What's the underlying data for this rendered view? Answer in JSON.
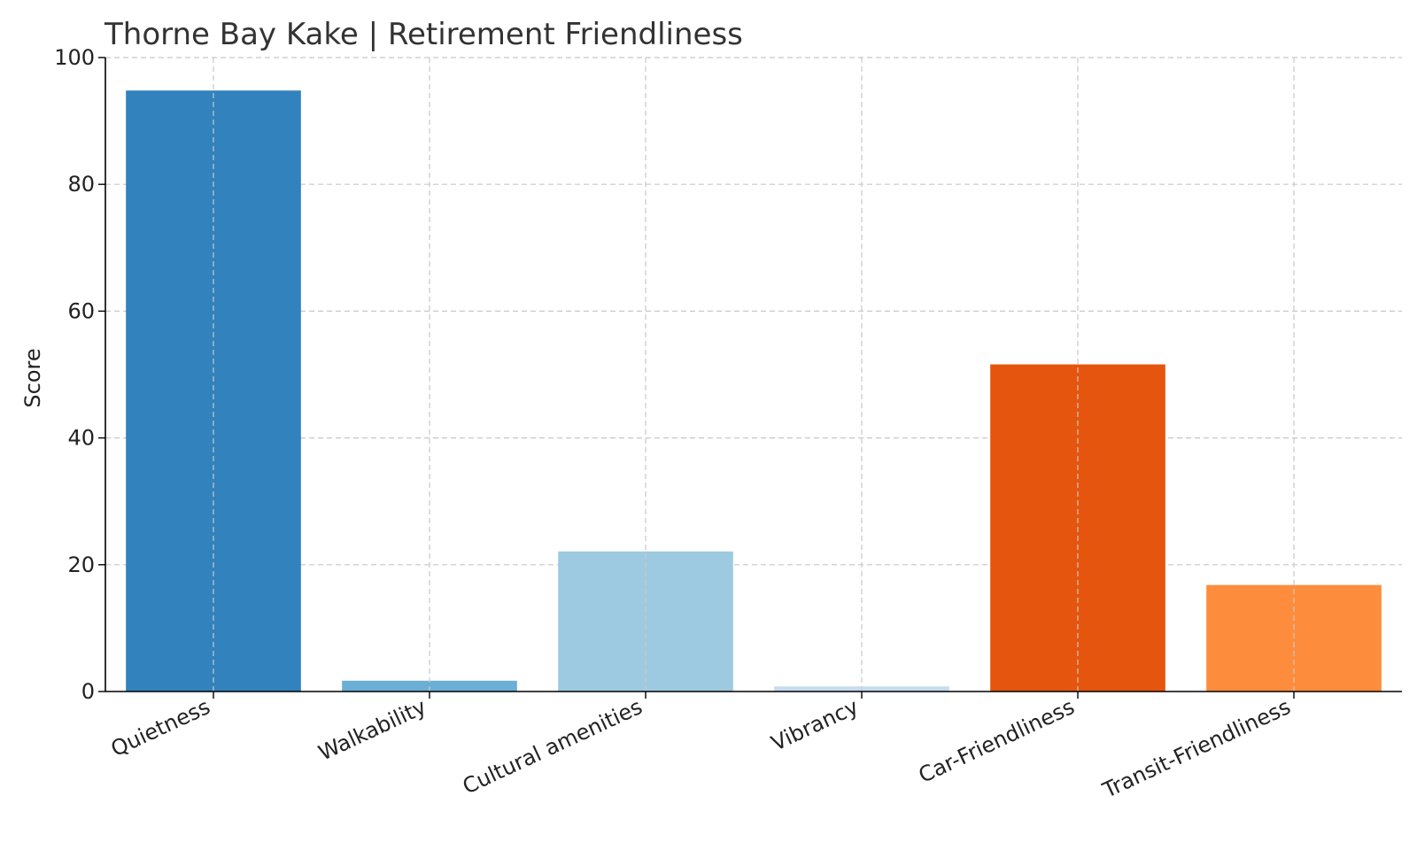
{
  "chart_data": {
    "type": "bar",
    "title": "Thorne Bay Kake | Retirement Friendliness",
    "xlabel": "",
    "ylabel": "Score",
    "ylim": [
      0,
      100
    ],
    "yticks": [
      0,
      20,
      40,
      60,
      80,
      100
    ],
    "grid": true,
    "categories": [
      "Quietness",
      "Walkability",
      "Cultural amenities",
      "Vibrancy",
      "Car-Friendliness",
      "Transit-Friendliness"
    ],
    "values": [
      94.8,
      1.7,
      22.1,
      0.8,
      51.6,
      16.8
    ],
    "colors": [
      "#3182bd",
      "#6baed6",
      "#9ecae1",
      "#c6dbef",
      "#e6550d",
      "#fd8d3c"
    ]
  }
}
